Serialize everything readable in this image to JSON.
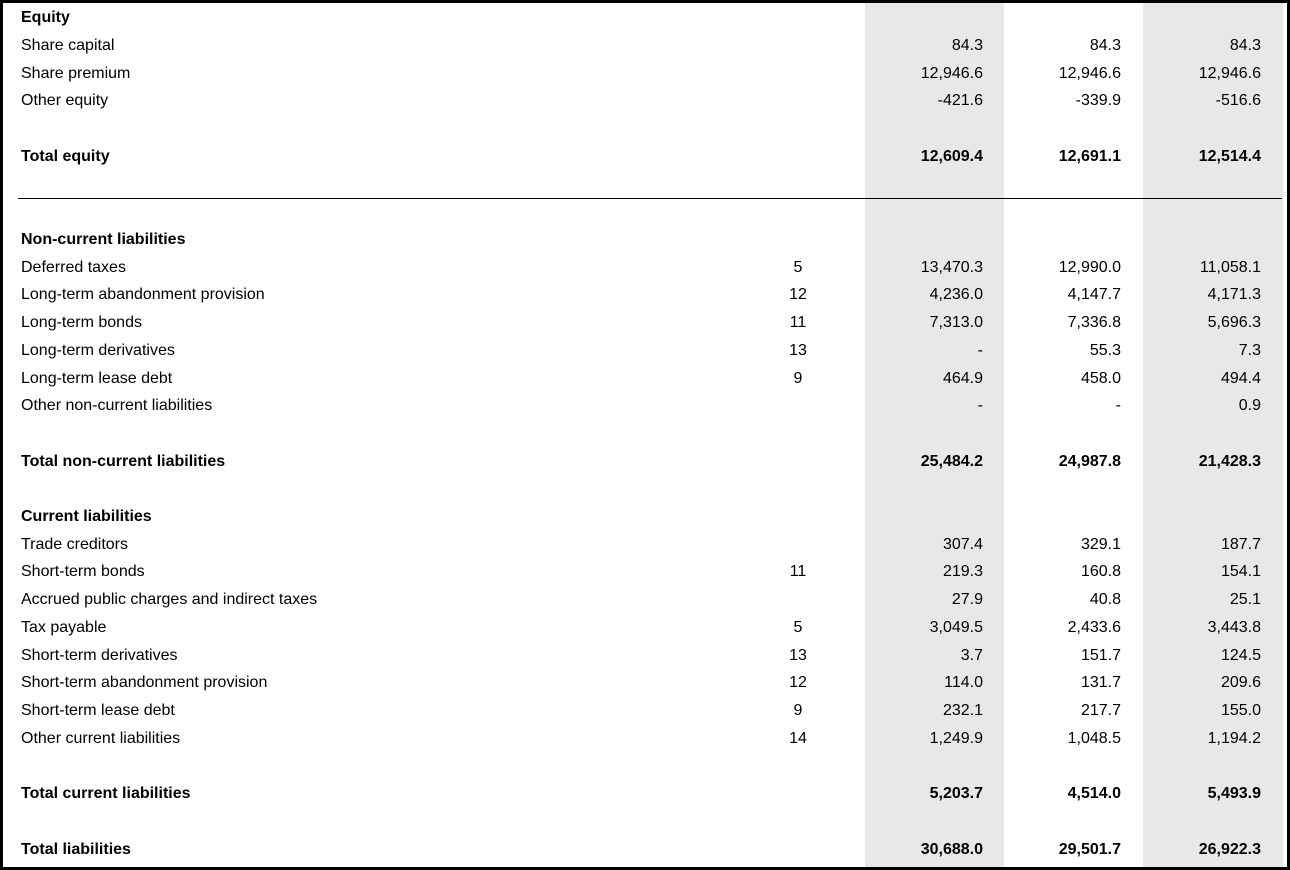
{
  "equity": {
    "heading": "Equity",
    "rows": [
      {
        "label": "Share capital",
        "note": "",
        "v1": "84.3",
        "v2": "84.3",
        "v3": "84.3"
      },
      {
        "label": "Share premium",
        "note": "",
        "v1": "12,946.6",
        "v2": "12,946.6",
        "v3": "12,946.6"
      },
      {
        "label": "Other equity",
        "note": "",
        "v1": "-421.6",
        "v2": "-339.9",
        "v3": "-516.6"
      }
    ],
    "total": {
      "label": "Total equity",
      "v1": "12,609.4",
      "v2": "12,691.1",
      "v3": "12,514.4"
    }
  },
  "non_current": {
    "heading": "Non-current liabilities",
    "rows": [
      {
        "label": "Deferred taxes",
        "note": "5",
        "v1": "13,470.3",
        "v2": "12,990.0",
        "v3": "11,058.1"
      },
      {
        "label": "Long-term abandonment provision",
        "note": "12",
        "v1": "4,236.0",
        "v2": "4,147.7",
        "v3": "4,171.3"
      },
      {
        "label": "Long-term bonds",
        "note": "11",
        "v1": "7,313.0",
        "v2": "7,336.8",
        "v3": "5,696.3"
      },
      {
        "label": "Long-term derivatives",
        "note": "13",
        "v1": "-",
        "v2": "55.3",
        "v3": "7.3"
      },
      {
        "label": "Long-term lease debt",
        "note": "9",
        "v1": "464.9",
        "v2": "458.0",
        "v3": "494.4"
      },
      {
        "label": "Other non-current liabilities",
        "note": "",
        "v1": "-",
        "v2": "-",
        "v3": "0.9"
      }
    ],
    "total": {
      "label": "Total non-current liabilities",
      "v1": "25,484.2",
      "v2": "24,987.8",
      "v3": "21,428.3"
    }
  },
  "current": {
    "heading": "Current liabilities",
    "rows": [
      {
        "label": "Trade creditors",
        "note": "",
        "v1": "307.4",
        "v2": "329.1",
        "v3": "187.7"
      },
      {
        "label": "Short-term bonds",
        "note": "11",
        "v1": "219.3",
        "v2": "160.8",
        "v3": "154.1"
      },
      {
        "label": "Accrued public charges and indirect taxes",
        "note": "",
        "v1": "27.9",
        "v2": "40.8",
        "v3": "25.1"
      },
      {
        "label": "Tax payable",
        "note": "5",
        "v1": "3,049.5",
        "v2": "2,433.6",
        "v3": "3,443.8"
      },
      {
        "label": "Short-term derivatives",
        "note": "13",
        "v1": "3.7",
        "v2": "151.7",
        "v3": "124.5"
      },
      {
        "label": "Short-term abandonment provision",
        "note": "12",
        "v1": "114.0",
        "v2": "131.7",
        "v3": "209.6"
      },
      {
        "label": "Short-term lease debt",
        "note": "9",
        "v1": "232.1",
        "v2": "217.7",
        "v3": "155.0"
      },
      {
        "label": "Other current liabilities",
        "note": "14",
        "v1": "1,249.9",
        "v2": "1,048.5",
        "v3": "1,194.2"
      }
    ],
    "total": {
      "label": "Total current liabilities",
      "v1": "5,203.7",
      "v2": "4,514.0",
      "v3": "5,493.9"
    }
  },
  "total_liabilities": {
    "label": "Total liabilities",
    "v1": "30,688.0",
    "v2": "29,501.7",
    "v3": "26,922.3"
  }
}
